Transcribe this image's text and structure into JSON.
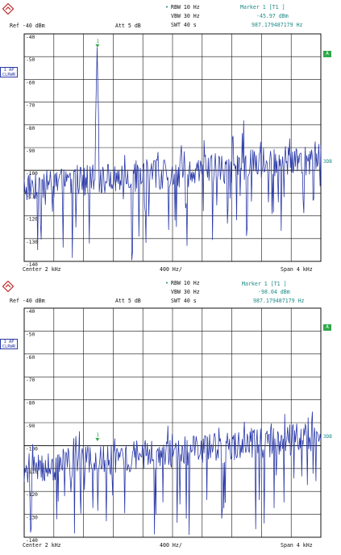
{
  "panels": [
    {
      "header": {
        "rbw": "RBW 10 Hz",
        "vbw": "VBW 30 Hz",
        "swt": "SWT 40 s",
        "marker_title": "Marker 1 [T1 ]",
        "marker_level": "-45.97 dBm",
        "marker_freq": "987.179487179 Hz",
        "ref": "Ref -40 dBm",
        "att": "Att  5 dB"
      },
      "side_badge": [
        "1 AP",
        "CLRWR"
      ],
      "a_tag": "A",
      "threedb_tag": "3DB",
      "y_tick_labels": [
        "-40",
        "-50",
        "-60",
        "-70",
        "-80",
        "-90",
        "-100",
        "-110",
        "-120",
        "-130",
        "-140"
      ],
      "footer": {
        "center": "Center  2 kHz",
        "div": "400 Hz/",
        "span": "Span  4 kHz"
      },
      "marker_label": "1",
      "trace": {
        "color": "#2b3aa8",
        "ylim": [
          -140,
          -40
        ],
        "marker_x_fraction": 0.247,
        "marker_level_dbm": -45.97,
        "spur_x_fraction": 0.74,
        "spur_level_dbm": -78,
        "floor_start_dbm": -107,
        "floor_end_dbm": -95
      }
    },
    {
      "header": {
        "rbw": "RBW 10 Hz",
        "vbw": "VBW 30 Hz",
        "swt": "SWT 40 s",
        "marker_title": "Marker 1 [T1 ]",
        "marker_level": "-98.04 dBm",
        "marker_freq": "987.179487179 Hz",
        "ref": "Ref -40 dBm",
        "att": "Att  5 dB"
      },
      "side_badge": [
        "1 AP",
        "CLRWR"
      ],
      "a_tag": "A",
      "threedb_tag": "3DB",
      "y_tick_labels": [
        "-40",
        "-50",
        "-60",
        "-70",
        "-80",
        "-90",
        "-100",
        "-110",
        "-120",
        "-130",
        "-140"
      ],
      "footer": {
        "center": "Center  2 kHz",
        "div": "400 Hz/",
        "span": "Span  4 kHz"
      },
      "marker_label": "1",
      "trace": {
        "color": "#2b3aa8",
        "ylim": [
          -140,
          -40
        ],
        "marker_x_fraction": 0.247,
        "marker_level_dbm": -98.04,
        "floor_start_dbm": -110,
        "floor_end_dbm": -96
      }
    }
  ]
}
